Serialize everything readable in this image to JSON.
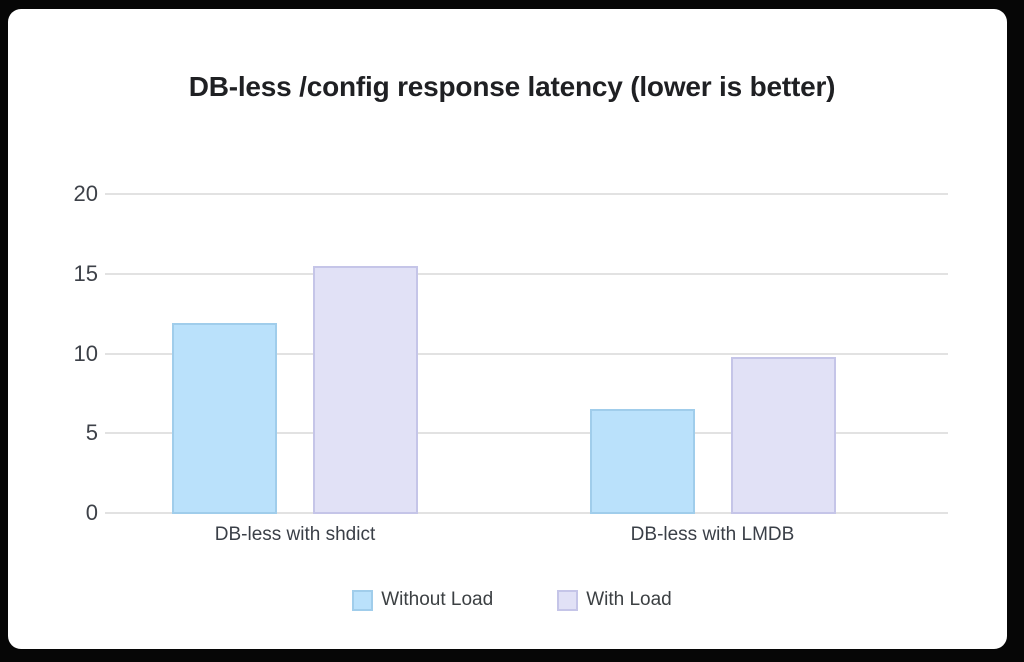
{
  "frame": {
    "background_color": "#060606",
    "card_color": "#ffffff"
  },
  "chart_data": {
    "type": "bar",
    "title": "DB-less /config response latency (lower is better)",
    "categories": [
      "DB-less with shdict",
      "DB-less with LMDB"
    ],
    "series": [
      {
        "name": "Without Load",
        "values": [
          11.9,
          6.5
        ],
        "fill": "#bae1fb",
        "border": "#a0cdeb"
      },
      {
        "name": "With Load",
        "values": [
          15.5,
          9.8
        ],
        "fill": "#e1e1f6",
        "border": "#c5c5e8"
      }
    ],
    "xlabel": "",
    "ylabel": "",
    "ylim": [
      0,
      20
    ],
    "yticks": [
      0,
      5,
      10,
      15,
      20
    ],
    "grid": true,
    "legend_position": "bottom",
    "gridline_color": "#e2e2e2",
    "text_colors": {
      "title": "#1f2023",
      "axis_ticks": "#3d4148",
      "category_labels": "#3a3f47",
      "legend": "#3c4043"
    }
  }
}
